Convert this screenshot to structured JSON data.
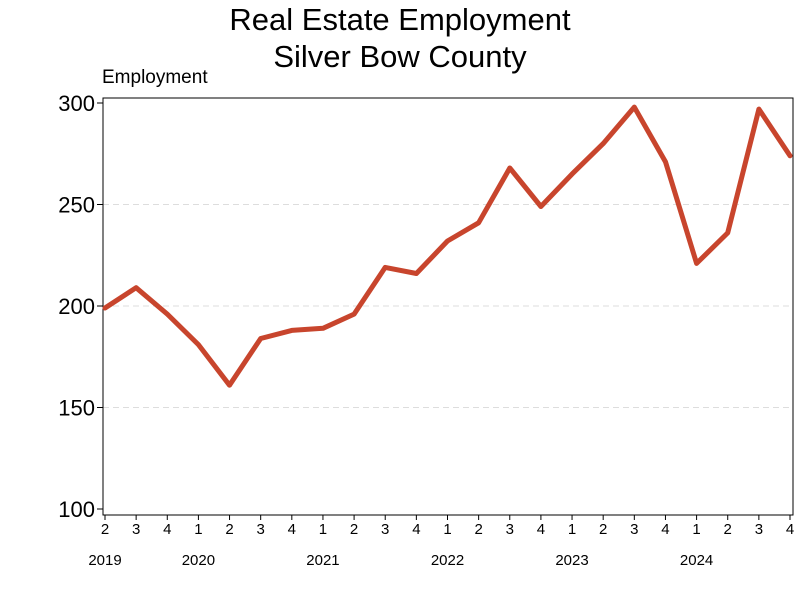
{
  "chart_data": {
    "type": "line",
    "title": "Real Estate Employment",
    "subtitle": "Silver Bow County",
    "ylabel": "Employment",
    "xlabel": "",
    "ylim": [
      100,
      300
    ],
    "yticks": [
      100,
      150,
      200,
      250,
      300
    ],
    "grid": "horizontal dashed",
    "x": [
      {
        "q": "2",
        "year": "2019"
      },
      {
        "q": "3",
        "year": ""
      },
      {
        "q": "4",
        "year": ""
      },
      {
        "q": "1",
        "year": "2020"
      },
      {
        "q": "2",
        "year": ""
      },
      {
        "q": "3",
        "year": ""
      },
      {
        "q": "4",
        "year": ""
      },
      {
        "q": "1",
        "year": "2021"
      },
      {
        "q": "2",
        "year": ""
      },
      {
        "q": "3",
        "year": ""
      },
      {
        "q": "4",
        "year": ""
      },
      {
        "q": "1",
        "year": "2022"
      },
      {
        "q": "2",
        "year": ""
      },
      {
        "q": "3",
        "year": ""
      },
      {
        "q": "4",
        "year": ""
      },
      {
        "q": "1",
        "year": "2023"
      },
      {
        "q": "2",
        "year": ""
      },
      {
        "q": "3",
        "year": ""
      },
      {
        "q": "4",
        "year": ""
      },
      {
        "q": "1",
        "year": "2024"
      },
      {
        "q": "2",
        "year": ""
      },
      {
        "q": "3",
        "year": ""
      },
      {
        "q": "4",
        "year": ""
      }
    ],
    "series": [
      {
        "values": [
          199,
          209,
          196,
          181,
          161,
          184,
          188,
          189,
          196,
          219,
          216,
          232,
          241,
          268,
          249,
          265,
          280,
          298,
          271,
          221,
          236,
          297,
          274
        ],
        "color": "#c8452d"
      }
    ]
  }
}
